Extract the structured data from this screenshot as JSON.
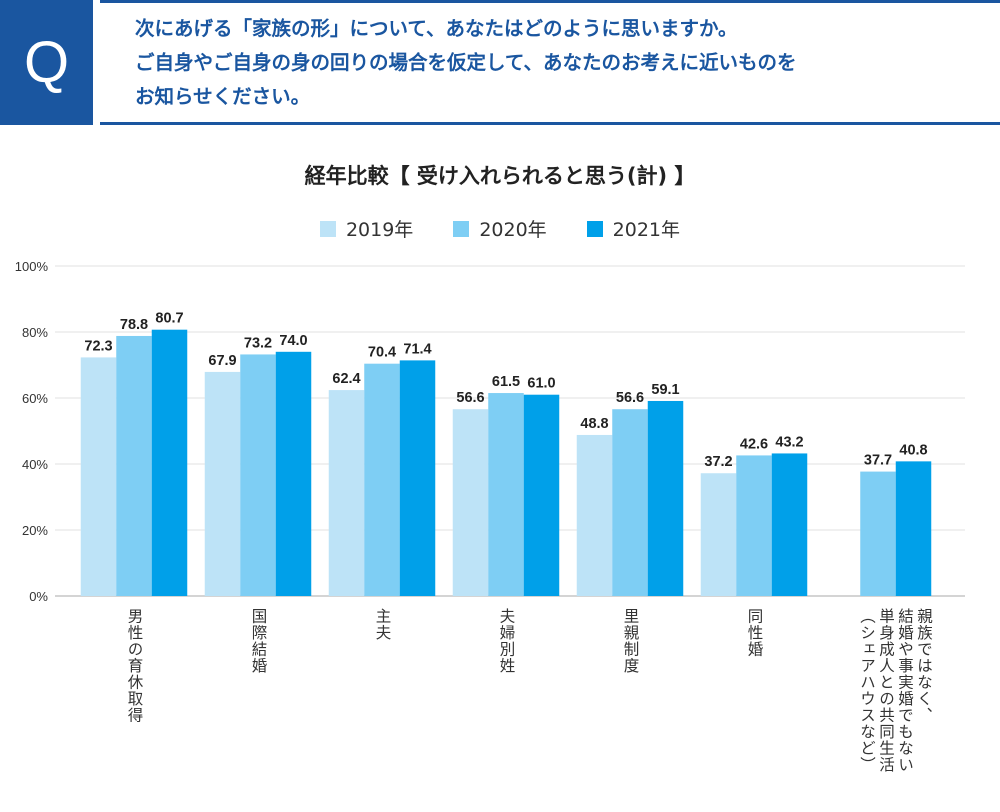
{
  "question": {
    "badge": "Q",
    "lines": [
      "次にあげる「家族の形」について、あなたはどのように思いますか。",
      "ご自身やご自身の身の回りの場合を仮定して、あなたのお考えに近いものを",
      "お知らせください。"
    ]
  },
  "chart_data": {
    "type": "bar",
    "title": "経年比較【 受け入れられると思う(計) 】",
    "categories": [
      "男性の育休取得",
      "国際結婚",
      "主夫",
      "夫婦別姓",
      "里親制度",
      "同性婚",
      "親族ではなく、結婚や事実婚でもない単身成人との共同生活（シェアハウスなど）"
    ],
    "category_lines": [
      [
        "男性の育休取得"
      ],
      [
        "国際結婚"
      ],
      [
        "主夫"
      ],
      [
        "夫婦別姓"
      ],
      [
        "里親制度"
      ],
      [
        "同性婚"
      ],
      [
        "親族ではなく、",
        "結婚や事実婚でもない",
        "単身成人との共同生活",
        "（シェアハウスなど）"
      ]
    ],
    "series": [
      {
        "name": "2019年",
        "color": "#bde3f7",
        "values": [
          72.3,
          67.9,
          62.4,
          56.6,
          48.8,
          37.2,
          null
        ]
      },
      {
        "name": "2020年",
        "color": "#7ecef4",
        "values": [
          78.8,
          73.2,
          70.4,
          61.5,
          56.6,
          42.6,
          37.7
        ]
      },
      {
        "name": "2021年",
        "color": "#00a0e9",
        "values": [
          80.7,
          74.0,
          71.4,
          61.0,
          59.1,
          43.2,
          40.8
        ]
      }
    ],
    "ylim": [
      0,
      100
    ],
    "yticks": [
      "0%",
      "20%",
      "40%",
      "60%",
      "80%",
      "100%"
    ],
    "grid": true,
    "legend": "top"
  }
}
